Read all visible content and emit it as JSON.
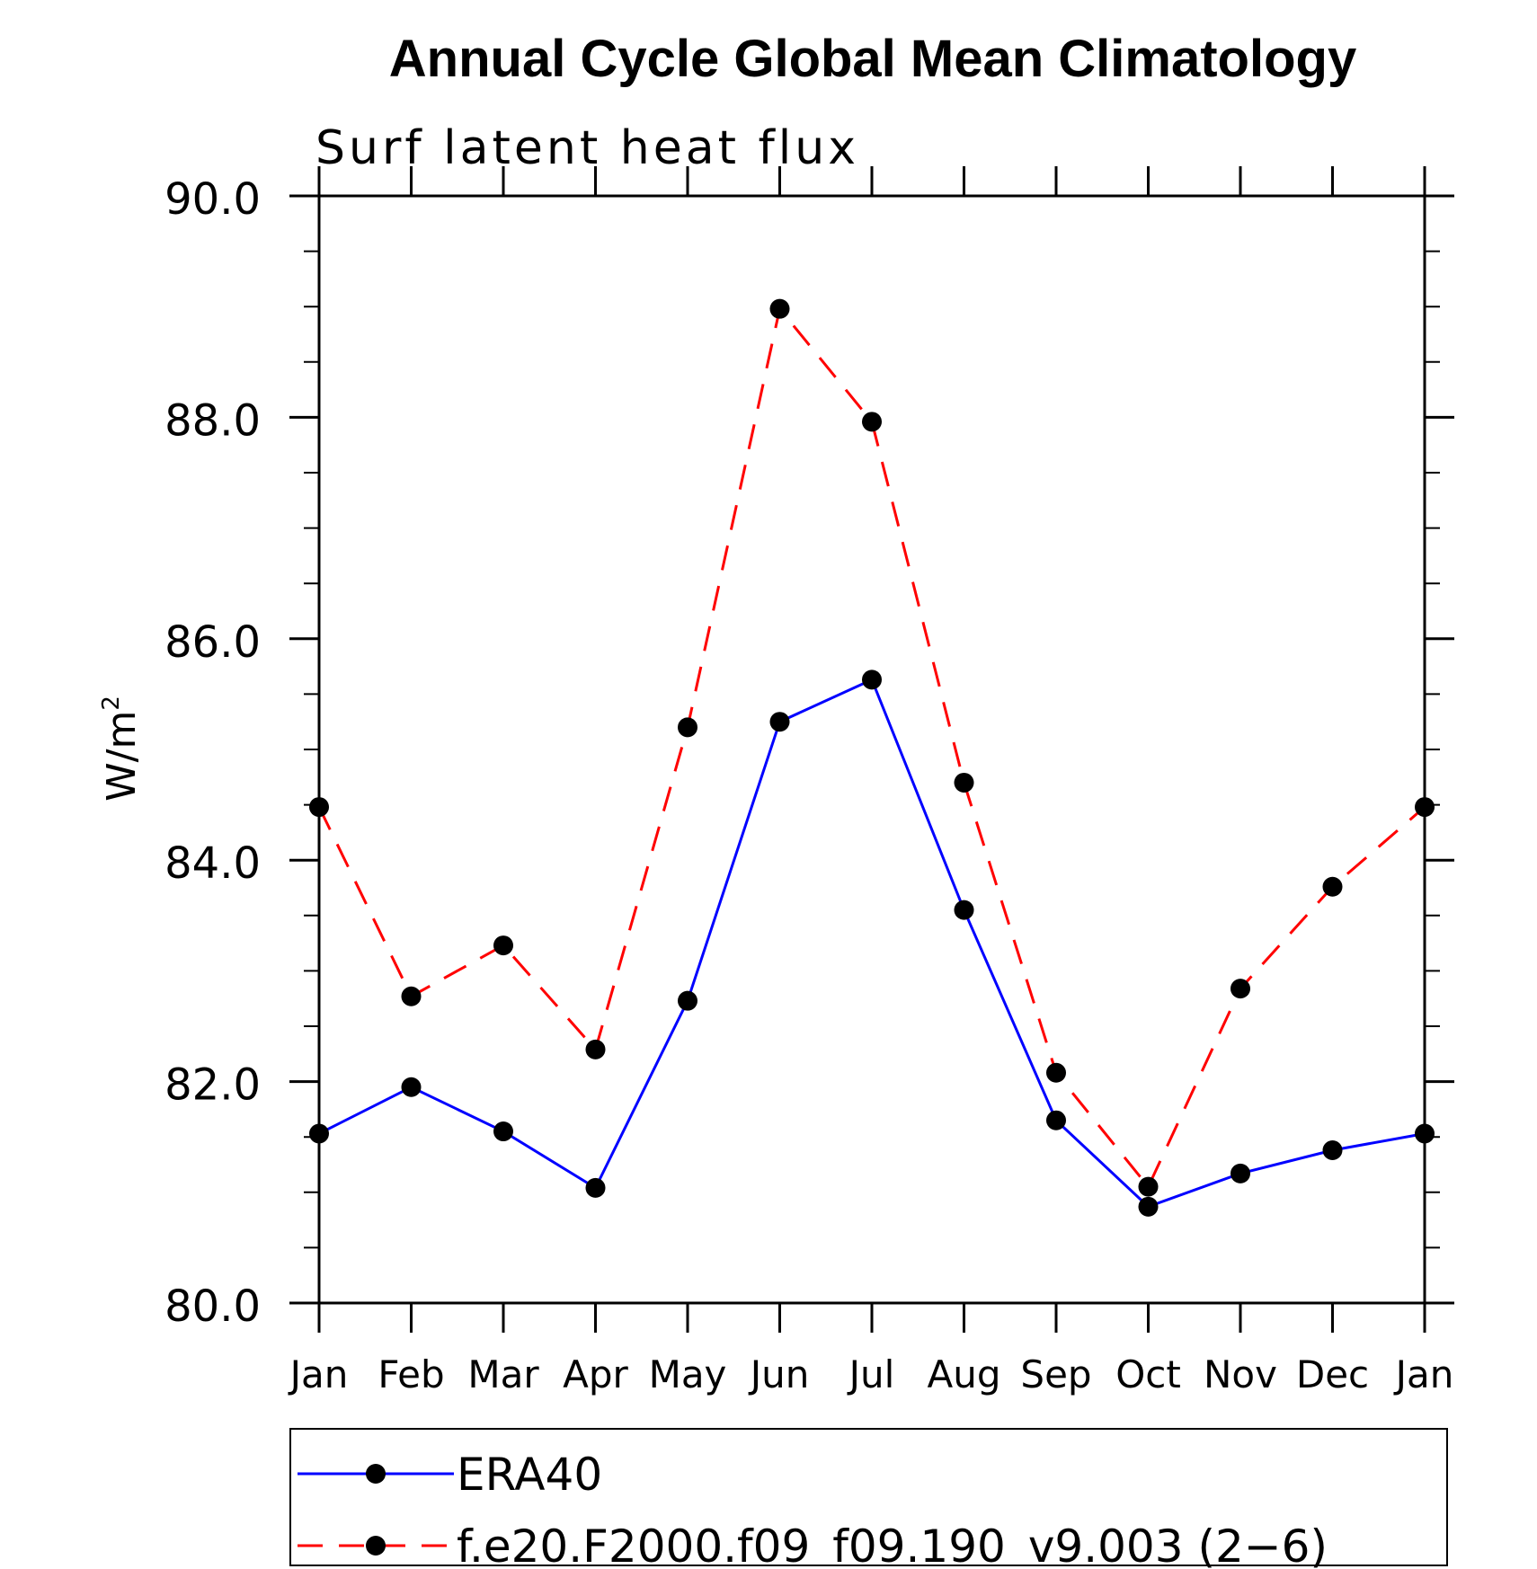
{
  "chart_data": {
    "type": "line",
    "title": "Annual Cycle Global Mean Climatology",
    "subtitle": "Surf latent heat flux",
    "ylabel": "W/m",
    "ylabel_sup": "2",
    "xlabel": "",
    "categories": [
      "Jan",
      "Feb",
      "Mar",
      "Apr",
      "May",
      "Jun",
      "Jul",
      "Aug",
      "Sep",
      "Oct",
      "Nov",
      "Dec",
      "Jan"
    ],
    "ylim": [
      80.0,
      90.0
    ],
    "yticks": [
      "80.0",
      "82.0",
      "84.0",
      "86.0",
      "88.0",
      "90.0"
    ],
    "grid": false,
    "legend_position": "bottom",
    "series": [
      {
        "name": "ERA40",
        "color": "#0000ff",
        "dash": "solid",
        "marker": "filled-circle",
        "values": [
          81.53,
          81.95,
          81.55,
          81.04,
          82.73,
          85.25,
          85.63,
          83.55,
          81.65,
          80.87,
          81.17,
          81.38,
          81.53
        ]
      },
      {
        "name": "f.e20.F2000.f09_f09.190_v9.003 (2−6)",
        "color": "#ff0000",
        "dash": "dashed",
        "marker": "filled-circle",
        "values": [
          84.48,
          82.77,
          83.23,
          82.29,
          85.2,
          88.98,
          87.96,
          84.7,
          82.08,
          81.05,
          82.84,
          83.76,
          84.48
        ]
      }
    ]
  }
}
